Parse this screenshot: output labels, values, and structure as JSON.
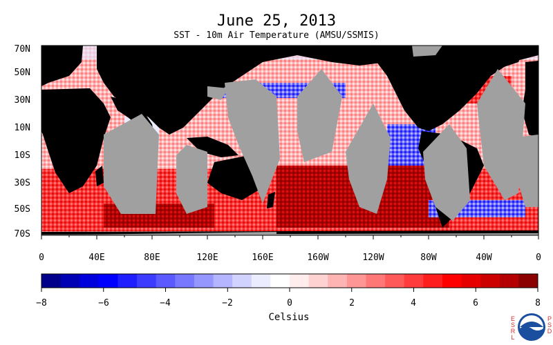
{
  "title": "June 25, 2013",
  "subtitle": "SST - 10m Air Temperature (AMSU/SSMIS)",
  "latitude_labels": [
    "70N",
    "50N",
    "30N",
    "10N",
    "10S",
    "30S",
    "50S",
    "70S"
  ],
  "longitude_labels": [
    "0",
    "40E",
    "80E",
    "120E",
    "160E",
    "160W",
    "120W",
    "80W",
    "40W",
    "0"
  ],
  "colorbar": {
    "ticks": [
      "−8",
      "−6",
      "−4",
      "−2",
      "0",
      "2",
      "4",
      "6",
      "8"
    ],
    "label": "Celsius",
    "colors": [
      "#00008b",
      "#0000b4",
      "#0000dc",
      "#0000ff",
      "#1e1eff",
      "#3c3cff",
      "#5a5aff",
      "#7878ff",
      "#9696ff",
      "#b4b4ff",
      "#d2d2ff",
      "#ececff",
      "#ffffff",
      "#ffecec",
      "#ffd2d2",
      "#ffb4b4",
      "#ff9696",
      "#ff7878",
      "#ff5a5a",
      "#ff3c3c",
      "#ff1e1e",
      "#ff0000",
      "#e60000",
      "#cd0000",
      "#b40000",
      "#8b0000"
    ]
  },
  "map_colors": {
    "land": "#000000",
    "no_data": "#a0a0a0"
  },
  "logo": {
    "left_text": "ESRL",
    "right_text": "PSD",
    "name": "NOAA"
  }
}
